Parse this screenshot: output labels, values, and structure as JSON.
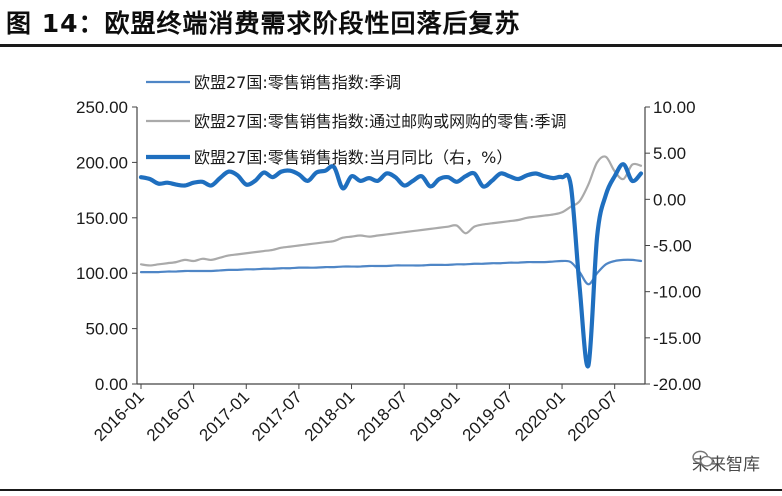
{
  "page": {
    "title": "图 14：欧盟终端消费需求阶段性回落后复苏",
    "watermark": "未来智库"
  },
  "chart_data": {
    "type": "line",
    "x": [
      "2016-01",
      "2016-02",
      "2016-03",
      "2016-04",
      "2016-05",
      "2016-06",
      "2016-07",
      "2016-08",
      "2016-09",
      "2016-10",
      "2016-11",
      "2016-12",
      "2017-01",
      "2017-02",
      "2017-03",
      "2017-04",
      "2017-05",
      "2017-06",
      "2017-07",
      "2017-08",
      "2017-09",
      "2017-10",
      "2017-11",
      "2017-12",
      "2018-01",
      "2018-02",
      "2018-03",
      "2018-04",
      "2018-05",
      "2018-06",
      "2018-07",
      "2018-08",
      "2018-09",
      "2018-10",
      "2018-11",
      "2018-12",
      "2019-01",
      "2019-02",
      "2019-03",
      "2019-04",
      "2019-05",
      "2019-06",
      "2019-07",
      "2019-08",
      "2019-09",
      "2019-10",
      "2019-11",
      "2019-12",
      "2020-01",
      "2020-02",
      "2020-03",
      "2020-04",
      "2020-05",
      "2020-06",
      "2020-07",
      "2020-08",
      "2020-09",
      "2020-10"
    ],
    "xticks": [
      "2016-01",
      "2016-07",
      "2017-01",
      "2017-07",
      "2018-01",
      "2018-07",
      "2019-01",
      "2019-07",
      "2020-01",
      "2020-07"
    ],
    "y_left": {
      "ylim": [
        0,
        250
      ],
      "ticks": [
        "0.00",
        "50.00",
        "100.00",
        "150.00",
        "200.00",
        "250.00"
      ]
    },
    "y_right": {
      "ylim": [
        -20,
        10
      ],
      "ticks": [
        "-20.00",
        "-15.00",
        "-10.00",
        "-5.00",
        "0.00",
        "5.00",
        "10.00"
      ]
    },
    "series": [
      {
        "name": "欧盟27国:零售销售指数:季调",
        "axis": "left",
        "color": "#4f86c6",
        "width": 2.2,
        "values": [
          101,
          101,
          101,
          101.5,
          101.5,
          102,
          102,
          102,
          102,
          102.5,
          103,
          103,
          103.5,
          103.5,
          104,
          104,
          104.5,
          104.5,
          105,
          105,
          105,
          105.5,
          105.5,
          106,
          106,
          106,
          106.5,
          106.5,
          106.5,
          107,
          107,
          107,
          107,
          107.5,
          107.5,
          107.5,
          108,
          108,
          108.5,
          108.5,
          109,
          109,
          109.5,
          109.5,
          110,
          110,
          110,
          110.5,
          111,
          110,
          101,
          90,
          100,
          108,
          111,
          112,
          112,
          111
        ]
      },
      {
        "name": "欧盟27国:零售销售指数:通过邮购或网购的零售:季调",
        "axis": "left",
        "color": "#aaaaaa",
        "width": 2.2,
        "values": [
          108,
          107,
          108,
          109,
          110,
          112,
          111,
          113,
          112,
          114,
          116,
          117,
          118,
          119,
          120,
          121,
          123,
          124,
          125,
          126,
          127,
          128,
          129,
          132,
          133,
          134,
          133,
          134,
          135,
          136,
          137,
          138,
          139,
          140,
          141,
          142,
          143,
          136,
          142,
          144,
          145,
          146,
          147,
          148,
          150,
          151,
          152,
          153,
          155,
          160,
          165,
          180,
          200,
          205,
          192,
          185,
          198,
          197
        ]
      },
      {
        "name": "欧盟27国:零售销售指数:当月同比（右，%）",
        "axis": "right",
        "color": "#1f6fbf",
        "width": 4.2,
        "values": [
          2.4,
          2.2,
          1.7,
          1.8,
          1.6,
          1.5,
          1.8,
          1.9,
          1.5,
          2.3,
          3.0,
          2.6,
          1.6,
          2.0,
          2.9,
          2.4,
          3.0,
          3.1,
          2.7,
          2.0,
          2.9,
          3.1,
          3.5,
          1.2,
          2.5,
          2.0,
          2.3,
          2.0,
          2.8,
          2.4,
          1.5,
          2.0,
          2.5,
          1.4,
          2.2,
          2.4,
          1.9,
          2.5,
          2.8,
          1.4,
          2.0,
          2.8,
          2.5,
          2.2,
          2.6,
          2.8,
          2.5,
          2.3,
          2.4,
          1.5,
          -9.5,
          -18.0,
          -4.0,
          0.5,
          2.5,
          3.8,
          2.0,
          2.8
        ]
      }
    ]
  }
}
